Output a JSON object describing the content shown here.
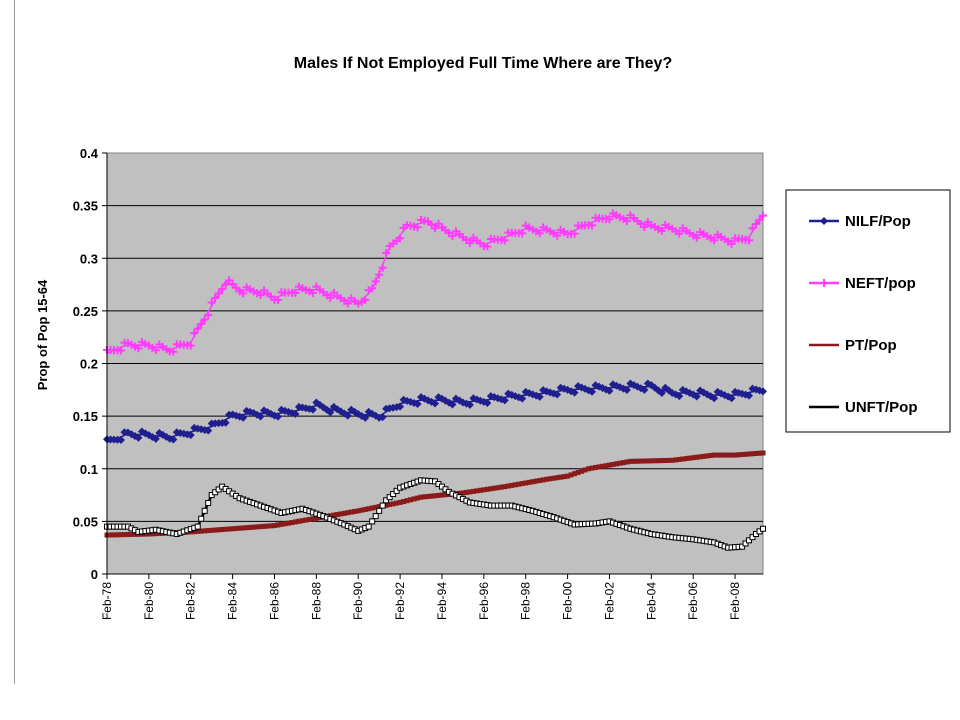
{
  "chart_data": {
    "type": "line",
    "title": "Males If Not Employed Full Time Where are They?",
    "xlabel": "",
    "ylabel": "Prop of Pop 15-64",
    "ylim": [
      0,
      0.4
    ],
    "yticks": [
      0,
      0.05,
      0.1,
      0.15,
      0.2,
      0.25,
      0.3,
      0.35,
      0.4
    ],
    "ytick_labels": [
      "0",
      "0.05",
      "0.1",
      "0.15",
      "0.2",
      "0.25",
      "0.3",
      "0.35",
      "0.4"
    ],
    "x_range": [
      "1978-02",
      "2009-06"
    ],
    "x_tick_labels": [
      "Feb-78",
      "Feb-80",
      "Feb-82",
      "Feb-84",
      "Feb-86",
      "Feb-88",
      "Feb-90",
      "Feb-92",
      "Feb-94",
      "Feb-96",
      "Feb-98",
      "Feb-00",
      "Feb-02",
      "Feb-04",
      "Feb-06",
      "Feb-08"
    ],
    "grid": "horizontal",
    "legend_position": "right",
    "plot_background": "#c0c0c0",
    "series": [
      {
        "name": "NILF/Pop",
        "color": "#1f1f8f",
        "marker": "diamond",
        "points": [
          [
            "1978-02",
            0.125
          ],
          [
            "1979-02",
            0.133
          ],
          [
            "1980-02",
            0.132
          ],
          [
            "1981-02",
            0.13
          ],
          [
            "1982-02",
            0.135
          ],
          [
            "1983-02",
            0.14
          ],
          [
            "1984-02",
            0.15
          ],
          [
            "1985-02",
            0.153
          ],
          [
            "1986-02",
            0.152
          ],
          [
            "1987-02",
            0.155
          ],
          [
            "1988-02",
            0.16
          ],
          [
            "1989-02",
            0.155
          ],
          [
            "1990-02",
            0.152
          ],
          [
            "1991-02",
            0.15
          ],
          [
            "1992-02",
            0.162
          ],
          [
            "1993-02",
            0.165
          ],
          [
            "1994-02",
            0.165
          ],
          [
            "1995-02",
            0.163
          ],
          [
            "1996-02",
            0.165
          ],
          [
            "1997-02",
            0.168
          ],
          [
            "1998-02",
            0.17
          ],
          [
            "1999-02",
            0.172
          ],
          [
            "2000-02",
            0.175
          ],
          [
            "2001-02",
            0.176
          ],
          [
            "2002-02",
            0.177
          ],
          [
            "2003-02",
            0.178
          ],
          [
            "2004-02",
            0.178
          ],
          [
            "2005-02",
            0.172
          ],
          [
            "2006-02",
            0.172
          ],
          [
            "2007-02",
            0.17
          ],
          [
            "2008-02",
            0.17
          ],
          [
            "2009-06",
            0.175
          ]
        ]
      },
      {
        "name": "NEFT/pop",
        "color": "#ff3cff",
        "marker": "plus",
        "points": [
          [
            "1978-02",
            0.21
          ],
          [
            "1979-02",
            0.218
          ],
          [
            "1980-02",
            0.217
          ],
          [
            "1981-02",
            0.213
          ],
          [
            "1982-02",
            0.22
          ],
          [
            "1983-02",
            0.255
          ],
          [
            "1983-10",
            0.278
          ],
          [
            "1984-06",
            0.27
          ],
          [
            "1985-06",
            0.268
          ],
          [
            "1986-02",
            0.262
          ],
          [
            "1987-02",
            0.27
          ],
          [
            "1988-02",
            0.27
          ],
          [
            "1989-02",
            0.263
          ],
          [
            "1990-02",
            0.257
          ],
          [
            "1990-10",
            0.27
          ],
          [
            "1991-08",
            0.31
          ],
          [
            "1992-06",
            0.33
          ],
          [
            "1993-06",
            0.335
          ],
          [
            "1994-02",
            0.328
          ],
          [
            "1995-02",
            0.32
          ],
          [
            "1996-02",
            0.313
          ],
          [
            "1997-02",
            0.32
          ],
          [
            "1998-02",
            0.328
          ],
          [
            "1999-02",
            0.326
          ],
          [
            "2000-02",
            0.323
          ],
          [
            "2001-02",
            0.333
          ],
          [
            "2002-02",
            0.34
          ],
          [
            "2003-02",
            0.338
          ],
          [
            "2004-02",
            0.33
          ],
          [
            "2005-02",
            0.328
          ],
          [
            "2006-02",
            0.323
          ],
          [
            "2007-02",
            0.32
          ],
          [
            "2008-02",
            0.316
          ],
          [
            "2008-10",
            0.32
          ],
          [
            "2009-06",
            0.342
          ]
        ]
      },
      {
        "name": "PT/Pop",
        "color": "#8b1a1a",
        "marker": "square",
        "points": [
          [
            "1978-02",
            0.037
          ],
          [
            "1980-02",
            0.038
          ],
          [
            "1982-02",
            0.04
          ],
          [
            "1984-02",
            0.043
          ],
          [
            "1986-02",
            0.046
          ],
          [
            "1988-02",
            0.053
          ],
          [
            "1990-02",
            0.06
          ],
          [
            "1992-02",
            0.068
          ],
          [
            "1993-02",
            0.073
          ],
          [
            "1995-02",
            0.077
          ],
          [
            "1997-02",
            0.083
          ],
          [
            "1999-02",
            0.09
          ],
          [
            "2000-02",
            0.093
          ],
          [
            "2001-02",
            0.1
          ],
          [
            "2003-02",
            0.107
          ],
          [
            "2005-02",
            0.108
          ],
          [
            "2007-02",
            0.113
          ],
          [
            "2008-02",
            0.113
          ],
          [
            "2009-06",
            0.115
          ]
        ]
      },
      {
        "name": "UNFT/Pop",
        "color": "#000000",
        "marker": "open-square",
        "points": [
          [
            "1978-02",
            0.045
          ],
          [
            "1979-02",
            0.045
          ],
          [
            "1979-08",
            0.04
          ],
          [
            "1980-06",
            0.042
          ],
          [
            "1981-06",
            0.038
          ],
          [
            "1982-06",
            0.045
          ],
          [
            "1983-02",
            0.075
          ],
          [
            "1983-08",
            0.083
          ],
          [
            "1984-06",
            0.072
          ],
          [
            "1985-06",
            0.065
          ],
          [
            "1986-06",
            0.058
          ],
          [
            "1987-06",
            0.062
          ],
          [
            "1988-06",
            0.055
          ],
          [
            "1989-06",
            0.047
          ],
          [
            "1990-02",
            0.041
          ],
          [
            "1990-08",
            0.045
          ],
          [
            "1991-06",
            0.07
          ],
          [
            "1992-02",
            0.082
          ],
          [
            "1993-02",
            0.089
          ],
          [
            "1993-10",
            0.088
          ],
          [
            "1994-06",
            0.078
          ],
          [
            "1995-06",
            0.068
          ],
          [
            "1996-06",
            0.065
          ],
          [
            "1997-06",
            0.065
          ],
          [
            "1998-06",
            0.06
          ],
          [
            "1999-06",
            0.054
          ],
          [
            "2000-06",
            0.047
          ],
          [
            "2001-06",
            0.048
          ],
          [
            "2002-02",
            0.05
          ],
          [
            "2003-02",
            0.043
          ],
          [
            "2004-02",
            0.038
          ],
          [
            "2005-02",
            0.035
          ],
          [
            "2006-02",
            0.033
          ],
          [
            "2007-02",
            0.03
          ],
          [
            "2007-10",
            0.025
          ],
          [
            "2008-06",
            0.026
          ],
          [
            "2009-02",
            0.038
          ],
          [
            "2009-06",
            0.043
          ]
        ]
      }
    ]
  }
}
